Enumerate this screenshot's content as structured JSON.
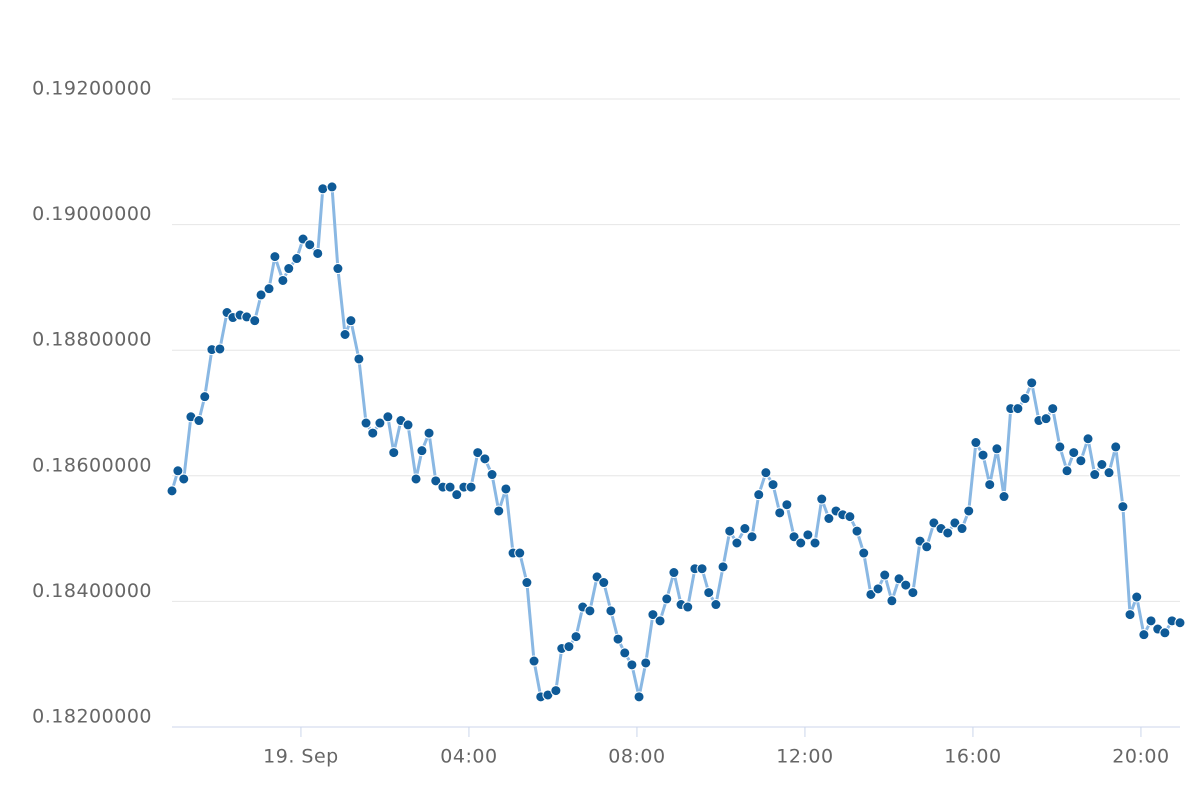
{
  "chart_data": {
    "type": "line",
    "x": [
      -3.07,
      -2.93,
      -2.79,
      -2.62,
      -2.43,
      -2.29,
      -2.12,
      -1.93,
      -1.76,
      -1.62,
      -1.45,
      -1.29,
      -1.1,
      -0.95,
      -0.76,
      -0.62,
      -0.43,
      -0.29,
      -0.1,
      0.05,
      0.21,
      0.4,
      0.52,
      0.74,
      0.88,
      1.05,
      1.19,
      1.38,
      1.55,
      1.71,
      1.88,
      2.07,
      2.21,
      2.38,
      2.55,
      2.74,
      2.88,
      3.05,
      3.21,
      3.38,
      3.55,
      3.71,
      3.88,
      4.05,
      4.21,
      4.38,
      4.55,
      4.71,
      4.88,
      5.05,
      5.21,
      5.38,
      5.55,
      5.71,
      5.88,
      6.07,
      6.21,
      6.38,
      6.55,
      6.71,
      6.88,
      7.05,
      7.21,
      7.38,
      7.55,
      7.71,
      7.88,
      8.05,
      8.21,
      8.38,
      8.55,
      8.71,
      8.88,
      9.05,
      9.21,
      9.38,
      9.55,
      9.71,
      9.88,
      10.05,
      10.21,
      10.38,
      10.57,
      10.74,
      10.9,
      11.07,
      11.24,
      11.4,
      11.57,
      11.74,
      11.9,
      12.07,
      12.24,
      12.4,
      12.57,
      12.74,
      12.9,
      13.07,
      13.24,
      13.4,
      13.57,
      13.74,
      13.9,
      14.07,
      14.24,
      14.4,
      14.57,
      14.74,
      14.9,
      15.07,
      15.24,
      15.4,
      15.57,
      15.74,
      15.9,
      16.07,
      16.24,
      16.4,
      16.57,
      16.74,
      16.9,
      17.07,
      17.24,
      17.4,
      17.57,
      17.74,
      17.9,
      18.07,
      18.24,
      18.4,
      18.57,
      18.74,
      18.9,
      19.07,
      19.24,
      19.4,
      19.57,
      19.74,
      19.9,
      20.07,
      20.24,
      20.4,
      20.57,
      20.74,
      20.93
    ],
    "values": [
      0.18576,
      0.18608,
      0.18595,
      0.18694,
      0.18688,
      0.18726,
      0.18801,
      0.18802,
      0.1886,
      0.18852,
      0.18856,
      0.18853,
      0.18847,
      0.18888,
      0.18898,
      0.18949,
      0.18911,
      0.1893,
      0.18946,
      0.18977,
      0.18968,
      0.18954,
      0.19057,
      0.1906,
      0.1893,
      0.18825,
      0.18847,
      0.18786,
      0.18684,
      0.18668,
      0.18684,
      0.18694,
      0.18637,
      0.18688,
      0.18681,
      0.18595,
      0.1864,
      0.18668,
      0.18592,
      0.18582,
      0.18582,
      0.1857,
      0.18582,
      0.18582,
      0.18637,
      0.18627,
      0.18602,
      0.18544,
      0.18579,
      0.18477,
      0.18477,
      0.1843,
      0.18305,
      0.18248,
      0.18251,
      0.18258,
      0.18325,
      0.18328,
      0.18344,
      0.18391,
      0.18385,
      0.18439,
      0.1843,
      0.18385,
      0.1834,
      0.18318,
      0.18299,
      0.18248,
      0.18302,
      0.18379,
      0.18369,
      0.18404,
      0.18446,
      0.18395,
      0.18391,
      0.18452,
      0.18452,
      0.18414,
      0.18395,
      0.18455,
      0.18512,
      0.18493,
      0.18516,
      0.18503,
      0.1857,
      0.18605,
      0.18586,
      0.18541,
      0.18554,
      0.18503,
      0.18493,
      0.18506,
      0.18493,
      0.18563,
      0.18532,
      0.18544,
      0.18538,
      0.18535,
      0.18512,
      0.18477,
      0.18411,
      0.1842,
      0.18442,
      0.18401,
      0.18436,
      0.18426,
      0.18414,
      0.18496,
      0.18487,
      0.18525,
      0.18516,
      0.18509,
      0.18525,
      0.18516,
      0.18544,
      0.18653,
      0.18633,
      0.18586,
      0.18643,
      0.18567,
      0.18707,
      0.18707,
      0.18723,
      0.18748,
      0.18688,
      0.18691,
      0.18707,
      0.18646,
      0.18608,
      0.18637,
      0.18624,
      0.18659,
      0.18602,
      0.18618,
      0.18605,
      0.18646,
      0.18551,
      0.18379,
      0.18407,
      0.18347,
      0.18369,
      0.18356,
      0.1835,
      0.18369,
      0.18366
    ],
    "color": "#8ab8e3",
    "marker_color": "#0e5a97",
    "xlim": [
      -3.07,
      20.93
    ],
    "xticks": [
      {
        "value": 0,
        "label": "19. Sep"
      },
      {
        "value": 4,
        "label": "04:00"
      },
      {
        "value": 8,
        "label": "08:00"
      },
      {
        "value": 12,
        "label": "12:00"
      },
      {
        "value": 16,
        "label": "16:00"
      },
      {
        "value": 20,
        "label": "20:00"
      }
    ],
    "ylim": [
      0.182,
      0.192
    ],
    "yticks": [
      {
        "value": 0.182,
        "label": "0.18200000"
      },
      {
        "value": 0.184,
        "label": "0.18400000"
      },
      {
        "value": 0.186,
        "label": "0.18600000"
      },
      {
        "value": 0.188,
        "label": "0.18800000"
      },
      {
        "value": 0.19,
        "label": "0.19000000"
      },
      {
        "value": 0.192,
        "label": "0.19200000"
      }
    ],
    "grid": true
  }
}
